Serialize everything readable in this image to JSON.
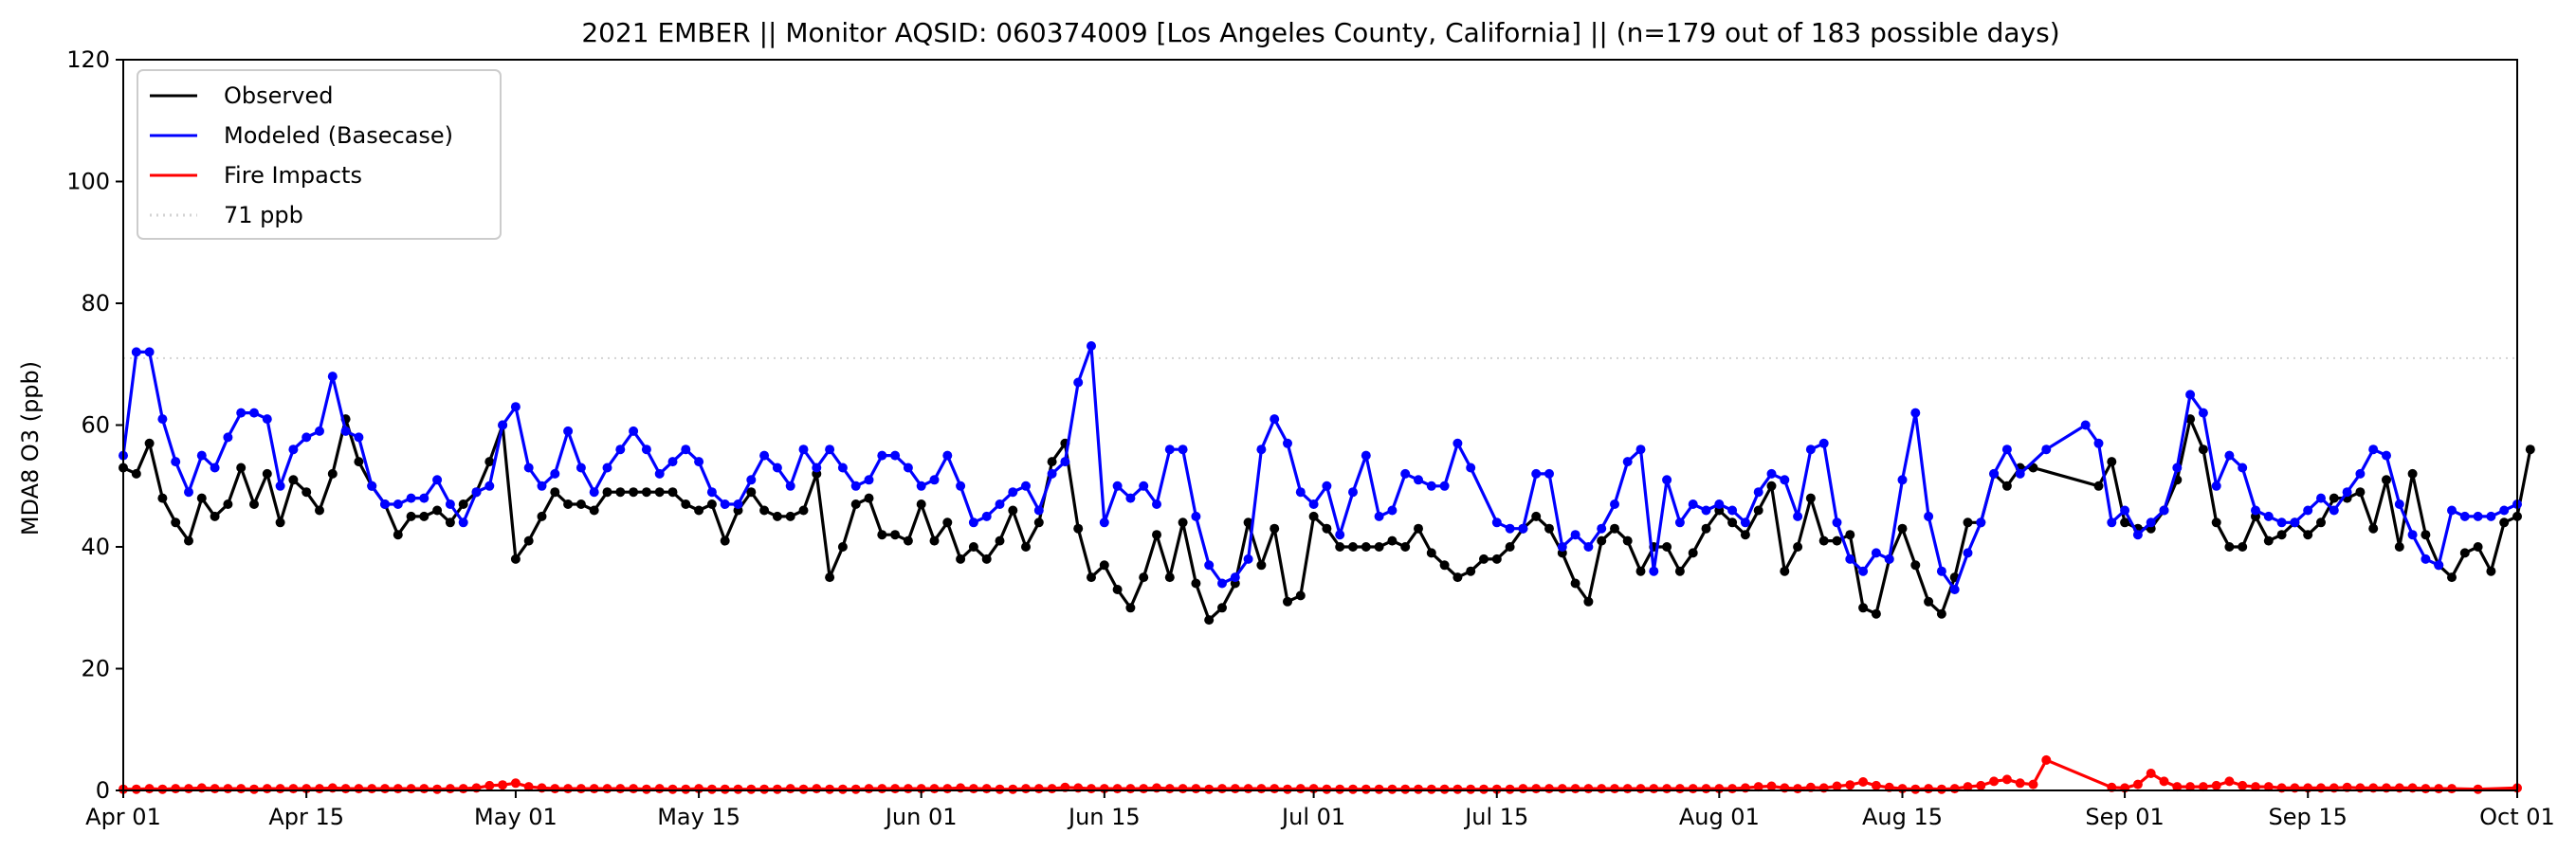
{
  "chart_data": {
    "type": "line",
    "title": "2021 EMBER || Monitor AQSID: 060374009 [Los Angeles County, California] || (n=179 out of 183 possible days)",
    "xlabel": "",
    "ylabel": "MDA8 O3 (ppb)",
    "xlim": [
      "2021-04-01",
      "2021-10-01"
    ],
    "ylim": [
      0,
      120
    ],
    "x_ticks": [
      "Apr 01",
      "Apr 15",
      "May 01",
      "May 15",
      "Jun 01",
      "Jun 15",
      "Jul 01",
      "Jul 15",
      "Aug 01",
      "Aug 15",
      "Sep 01",
      "Sep 15",
      "Oct 01"
    ],
    "x_tick_dates": [
      "2021-04-01",
      "2021-04-15",
      "2021-05-01",
      "2021-05-15",
      "2021-06-01",
      "2021-06-15",
      "2021-07-01",
      "2021-07-15",
      "2021-08-01",
      "2021-08-15",
      "2021-09-01",
      "2021-09-15",
      "2021-10-01"
    ],
    "y_ticks": [
      0,
      20,
      40,
      60,
      80,
      100,
      120
    ],
    "grid": false,
    "legend_position": "top-left",
    "reference_line": {
      "label": "71 ppb",
      "value": 71,
      "color": "#d3d3d3",
      "style": "dotted"
    },
    "series": [
      {
        "name": "Observed",
        "color": "#000000",
        "start_date": "2021-04-01",
        "values": [
          53,
          52,
          57,
          48,
          44,
          41,
          48,
          45,
          47,
          53,
          47,
          52,
          44,
          51,
          49,
          46,
          52,
          61,
          54,
          50,
          47,
          42,
          45,
          45,
          46,
          44,
          47,
          49,
          54,
          60,
          38,
          41,
          45,
          49,
          47,
          47,
          46,
          49,
          49,
          49,
          49,
          49,
          49,
          47,
          46,
          47,
          41,
          46,
          49,
          46,
          45,
          45,
          46,
          52,
          35,
          40,
          47,
          48,
          42,
          42,
          41,
          47,
          41,
          44,
          38,
          40,
          38,
          41,
          46,
          40,
          44,
          54,
          57,
          43,
          35,
          37,
          33,
          30,
          35,
          42,
          35,
          44,
          34,
          28,
          30,
          34,
          44,
          37,
          43,
          31,
          32,
          45,
          43,
          40,
          40,
          40,
          40,
          41,
          40,
          43,
          39,
          37,
          35,
          36,
          38,
          38,
          40,
          43,
          45,
          43,
          39,
          34,
          31,
          41,
          43,
          41,
          36,
          40,
          40,
          36,
          39,
          43,
          46,
          44,
          42,
          46,
          50,
          36,
          40,
          48,
          41,
          41,
          42,
          30,
          29,
          38,
          43,
          37,
          31,
          29,
          35,
          44,
          44,
          52,
          50,
          53,
          53,
          null,
          null,
          null,
          null,
          50,
          54,
          44,
          43,
          43,
          46,
          51,
          61,
          56,
          44,
          40,
          40,
          45,
          41,
          42,
          44,
          42,
          44,
          48,
          48,
          49,
          43,
          51,
          40,
          52,
          42,
          37,
          35,
          39,
          40,
          36,
          44,
          45,
          56
        ]
      },
      {
        "name": "Modeled (Basecase)",
        "color": "#0000ff",
        "start_date": "2021-04-01",
        "values": [
          55,
          72,
          72,
          61,
          54,
          49,
          55,
          53,
          58,
          62,
          62,
          61,
          50,
          56,
          58,
          59,
          68,
          59,
          58,
          50,
          47,
          47,
          48,
          48,
          51,
          47,
          44,
          49,
          50,
          60,
          63,
          53,
          50,
          52,
          59,
          53,
          49,
          53,
          56,
          59,
          56,
          52,
          54,
          56,
          54,
          49,
          47,
          47,
          51,
          55,
          53,
          50,
          56,
          53,
          56,
          53,
          50,
          51,
          55,
          55,
          53,
          50,
          51,
          55,
          50,
          44,
          45,
          47,
          49,
          50,
          46,
          52,
          54,
          67,
          73,
          44,
          50,
          48,
          50,
          47,
          56,
          56,
          45,
          37,
          34,
          35,
          38,
          56,
          61,
          57,
          49,
          47,
          50,
          42,
          49,
          55,
          45,
          46,
          52,
          51,
          50,
          50,
          57,
          53,
          null,
          44,
          43,
          43,
          52,
          52,
          40,
          42,
          40,
          43,
          47,
          54,
          56,
          36,
          51,
          44,
          47,
          46,
          47,
          46,
          44,
          49,
          52,
          51,
          45,
          56,
          57,
          44,
          38,
          36,
          39,
          38,
          51,
          62,
          45,
          36,
          33,
          39,
          44,
          52,
          56,
          52,
          null,
          56,
          null,
          null,
          60,
          57,
          44,
          46,
          42,
          44,
          46,
          53,
          65,
          62,
          50,
          55,
          53,
          46,
          45,
          44,
          44,
          46,
          48,
          46,
          49,
          52,
          56,
          55,
          47,
          42,
          38,
          37,
          46,
          45,
          45,
          45,
          46,
          47
        ]
      },
      {
        "name": "Fire Impacts",
        "color": "#ff0000",
        "start_date": "2021-04-01",
        "values": [
          0.2,
          0.2,
          0.3,
          0.2,
          0.3,
          0.3,
          0.4,
          0.3,
          0.3,
          0.3,
          0.2,
          0.3,
          0.3,
          0.3,
          0.3,
          0.3,
          0.4,
          0.3,
          0.3,
          0.3,
          0.3,
          0.3,
          0.3,
          0.3,
          0.2,
          0.3,
          0.3,
          0.4,
          0.8,
          0.9,
          1.2,
          0.6,
          0.4,
          0.3,
          0.3,
          0.3,
          0.3,
          0.3,
          0.3,
          0.3,
          0.2,
          0.3,
          0.2,
          0.2,
          0.3,
          0.2,
          0.2,
          0.2,
          0.2,
          0.2,
          0.2,
          0.3,
          0.2,
          0.3,
          0.2,
          0.2,
          0.2,
          0.3,
          0.3,
          0.3,
          0.3,
          0.3,
          0.3,
          0.3,
          0.4,
          0.3,
          0.3,
          0.2,
          0.2,
          0.3,
          0.3,
          0.3,
          0.5,
          0.4,
          0.3,
          0.3,
          0.3,
          0.3,
          0.3,
          0.4,
          0.3,
          0.3,
          0.3,
          0.2,
          0.3,
          0.3,
          0.3,
          0.3,
          0.3,
          0.2,
          0.3,
          0.3,
          0.2,
          0.2,
          0.2,
          0.2,
          0.2,
          0.2,
          0.2,
          0.2,
          0.2,
          0.2,
          0.2,
          0.2,
          0.2,
          0.2,
          0.2,
          0.3,
          0.3,
          0.3,
          0.3,
          0.3,
          0.3,
          0.3,
          0.3,
          0.3,
          0.3,
          0.3,
          0.3,
          0.3,
          0.3,
          0.3,
          0.3,
          0.3,
          0.4,
          0.6,
          0.7,
          0.4,
          0.3,
          0.5,
          0.4,
          0.7,
          0.9,
          1.4,
          0.8,
          0.5,
          0.3,
          0.2,
          0.3,
          0.2,
          0.3,
          0.6,
          0.8,
          1.5,
          1.8,
          1.2,
          1.0,
          5.0,
          null,
          null,
          null,
          null,
          0.5,
          0.4,
          1.0,
          2.8,
          1.5,
          0.6,
          0.6,
          0.6,
          0.8,
          1.5,
          0.8,
          0.6,
          0.6,
          0.4,
          0.4,
          0.4,
          0.4,
          0.4,
          0.5,
          0.4,
          0.4,
          0.4,
          0.4,
          0.4,
          0.3,
          0.3,
          0.3,
          null,
          0.2,
          null,
          null,
          0.4,
          null,
          null
        ]
      }
    ]
  }
}
